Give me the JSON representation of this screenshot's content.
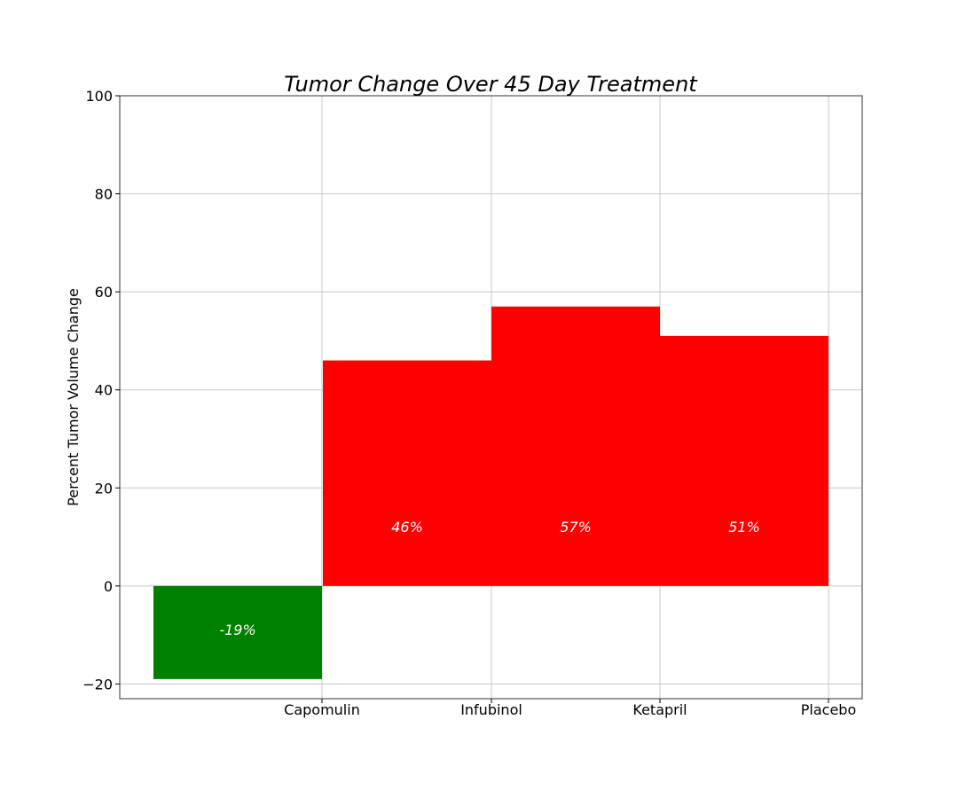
{
  "chart_data": {
    "type": "bar",
    "title": "Tumor Change Over 45 Day Treatment",
    "xlabel": "",
    "ylabel": "Percent Tumor Volume Change",
    "categories": [
      "Capomulin",
      "Infubinol",
      "Ketapril",
      "Placebo"
    ],
    "values": [
      -19,
      46,
      57,
      51
    ],
    "data_labels": [
      "-19%",
      "46%",
      "57%",
      "51%"
    ],
    "ylim": [
      -23,
      100
    ],
    "yticks": [
      -20,
      0,
      20,
      40,
      60,
      80,
      100
    ],
    "ytick_labels": [
      "−20",
      "0",
      "20",
      "40",
      "60",
      "80",
      "100"
    ],
    "grid": true,
    "bar_alignment": "bars-left-of-tick",
    "colors": {
      "negative": "#008000",
      "positive": "#ff0000",
      "grid": "#c8c8c8",
      "label_text": "#ffffff"
    }
  }
}
